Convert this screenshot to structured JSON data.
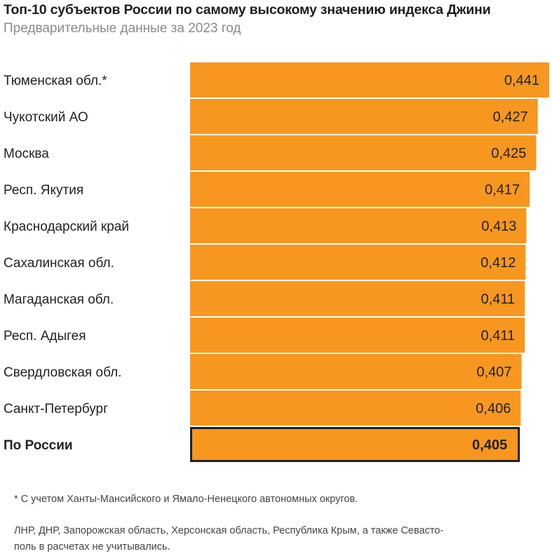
{
  "chart_data": {
    "type": "bar",
    "orientation": "horizontal",
    "title": "Топ-10 субъектов России по самому высокому значению индекса Джини",
    "subtitle": "Предварительные данные за 2023 год",
    "categories": [
      "Тюменская обл.*",
      "Чукотский АО",
      "Москва",
      "Респ. Якутия",
      "Краснодарский край",
      "Сахалинская обл.",
      "Магаданская обл.",
      "Респ. Адыгея",
      "Свердловская обл.",
      "Санкт-Петербург",
      "По России"
    ],
    "values": [
      0.441,
      0.427,
      0.425,
      0.417,
      0.413,
      0.412,
      0.411,
      0.411,
      0.407,
      0.406,
      0.405
    ],
    "value_labels": [
      "0,441",
      "0,427",
      "0,425",
      "0,417",
      "0,413",
      "0,412",
      "0,411",
      "0,411",
      "0,407",
      "0,406",
      "0,405"
    ],
    "highlighted": "По России",
    "xlim": [
      0,
      0.441
    ],
    "grid": false,
    "bar_color": "#F7971F",
    "highlight_border_color": "#231f20"
  },
  "notes": [
    "* С учетом Ханты-Мансийского и Ямало-Ненецкого автономных округов.",
    "ЛНР, ДНР, Запорожская область, Херсонская область, Республика Крым, а также Севасто-\nполь в расчетах не учитывались."
  ]
}
